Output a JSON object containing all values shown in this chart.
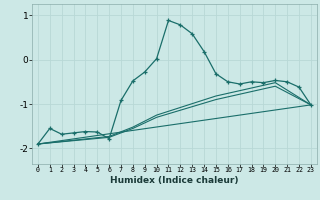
{
  "xlabel": "Humidex (Indice chaleur)",
  "background_color": "#cce8e6",
  "line_color": "#1a6e6a",
  "grid_color": "#b8d8d6",
  "x_min": -0.5,
  "x_max": 23.5,
  "y_min": -2.35,
  "y_max": 1.25,
  "x_ticks": [
    0,
    1,
    2,
    3,
    4,
    5,
    6,
    7,
    8,
    9,
    10,
    11,
    12,
    13,
    14,
    15,
    16,
    17,
    18,
    19,
    20,
    21,
    22,
    23
  ],
  "y_ticks": [
    -2,
    -1,
    0,
    1
  ],
  "series_main": {
    "x": [
      0,
      1,
      2,
      3,
      4,
      5,
      6,
      7,
      8,
      9,
      10,
      11,
      12,
      13,
      14,
      15,
      16,
      17,
      18,
      19,
      20,
      21,
      22,
      23
    ],
    "y": [
      -1.9,
      -1.55,
      -1.68,
      -1.65,
      -1.62,
      -1.63,
      -1.78,
      -0.92,
      -0.48,
      -0.28,
      0.02,
      0.88,
      0.78,
      0.58,
      0.18,
      -0.32,
      -0.5,
      -0.55,
      -0.5,
      -0.52,
      -0.47,
      -0.5,
      -0.62,
      -1.02
    ]
  },
  "series_lines": [
    {
      "x": [
        0,
        23
      ],
      "y": [
        -1.9,
        -1.02
      ]
    },
    {
      "x": [
        0,
        6,
        8,
        10,
        15,
        20,
        23
      ],
      "y": [
        -1.9,
        -1.75,
        -1.55,
        -1.3,
        -0.9,
        -0.6,
        -1.02
      ]
    },
    {
      "x": [
        0,
        6,
        8,
        10,
        15,
        20,
        23
      ],
      "y": [
        -1.9,
        -1.73,
        -1.52,
        -1.25,
        -0.82,
        -0.52,
        -1.02
      ]
    }
  ]
}
